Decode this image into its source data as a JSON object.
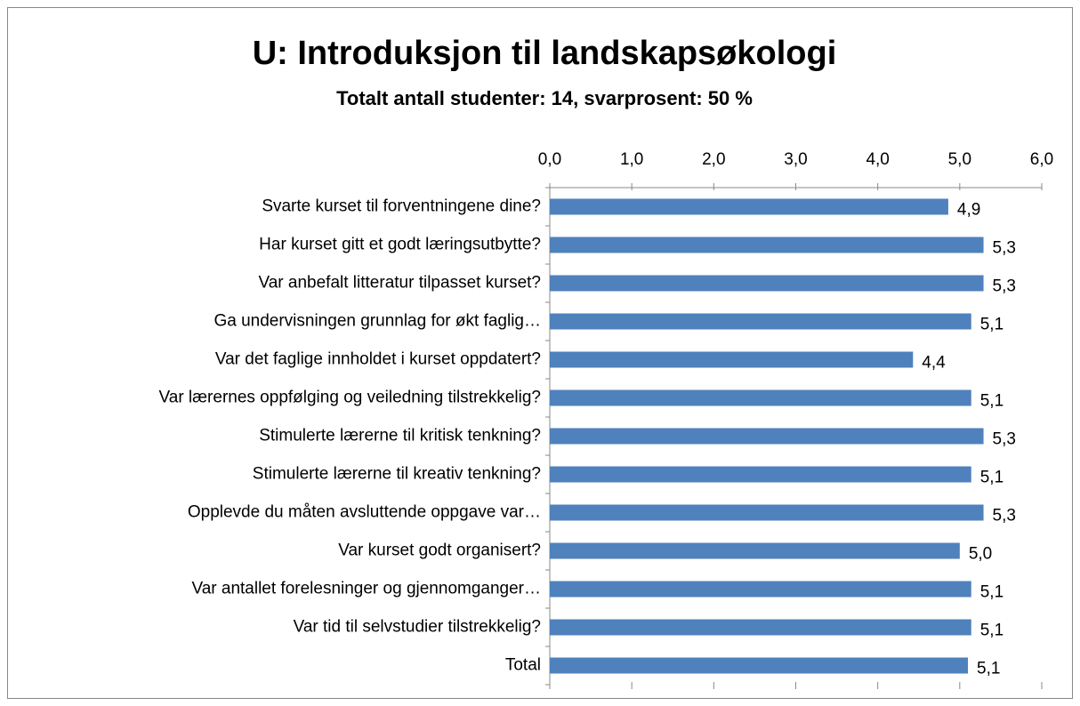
{
  "chart_data": {
    "type": "bar",
    "orientation": "horizontal",
    "title": "U: Introduksjon til landskapsøkologi",
    "subtitle": "Totalt antall studenter: 14, svarprosent: 50 %",
    "categories": [
      "Svarte kurset til forventningene dine?",
      "Har kurset gitt et godt læringsutbytte?",
      "Var anbefalt litteratur tilpasset kurset?",
      "Ga undervisningen grunnlag for økt faglig…",
      "Var det faglige innholdet i kurset oppdatert?",
      "Var lærernes oppfølging og veiledning tilstrekkelig?",
      "Stimulerte lærerne til kritisk tenkning?",
      "Stimulerte lærerne til kreativ tenkning?",
      "Opplevde du måten avsluttende oppgave var…",
      "Var kurset godt organisert?",
      "Var antallet forelesninger og gjennomganger…",
      "Var tid til selvstudier tilstrekkelig?",
      "Total"
    ],
    "values": [
      4.86,
      5.29,
      5.29,
      5.14,
      4.43,
      5.14,
      5.29,
      5.14,
      5.29,
      5.0,
      5.14,
      5.14,
      5.1
    ],
    "value_labels": [
      "4,9",
      "5,3",
      "5,3",
      "5,1",
      "4,4",
      "5,1",
      "5,3",
      "5,1",
      "5,3",
      "5,0",
      "5,1",
      "5,1",
      "5,1"
    ],
    "color": "#4f81bd",
    "xlim": [
      0,
      6
    ],
    "xticks": [
      {
        "value": 0,
        "label": "0,0"
      },
      {
        "value": 1,
        "label": "1,0"
      },
      {
        "value": 2,
        "label": "2,0"
      },
      {
        "value": 3,
        "label": "3,0"
      },
      {
        "value": 4,
        "label": "4,0"
      },
      {
        "value": 5,
        "label": "5,0"
      },
      {
        "value": 6,
        "label": "6,0"
      }
    ],
    "grid": false
  }
}
